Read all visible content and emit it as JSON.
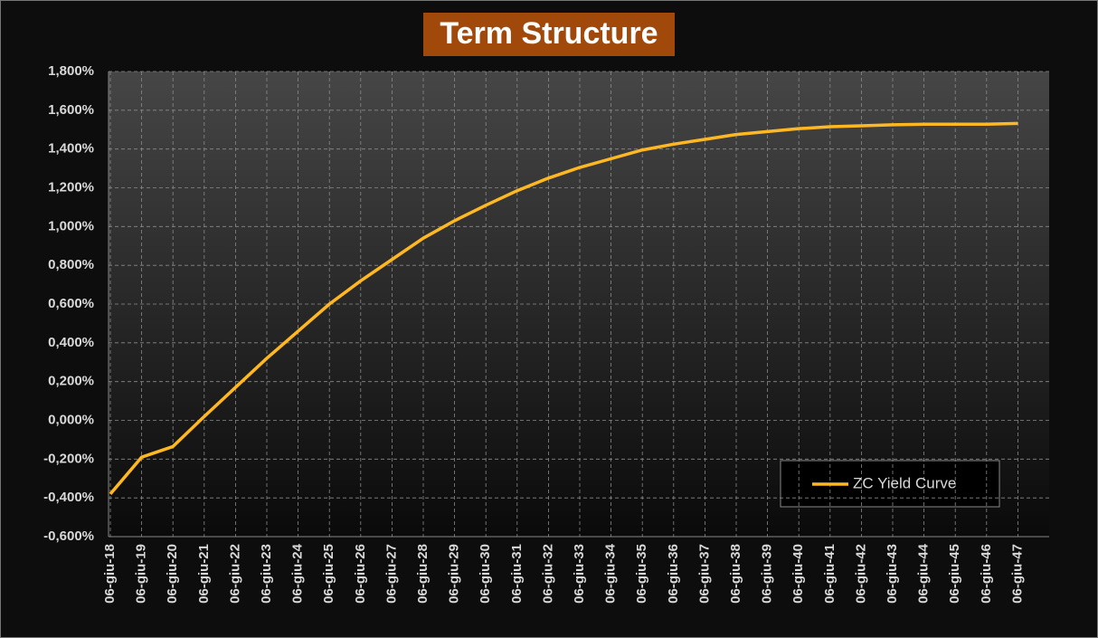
{
  "chart_data": {
    "type": "line",
    "title": "Term Structure",
    "categories": [
      "06-giu-18",
      "06-giu-19",
      "06-giu-20",
      "06-giu-21",
      "06-giu-22",
      "06-giu-23",
      "06-giu-24",
      "06-giu-25",
      "06-giu-26",
      "06-giu-27",
      "06-giu-28",
      "06-giu-29",
      "06-giu-30",
      "06-giu-31",
      "06-giu-32",
      "06-giu-33",
      "06-giu-34",
      "06-giu-35",
      "06-giu-36",
      "06-giu-37",
      "06-giu-38",
      "06-giu-39",
      "06-giu-40",
      "06-giu-41",
      "06-giu-42",
      "06-giu-43",
      "06-giu-44",
      "06-giu-45",
      "06-giu-46",
      "06-giu-47"
    ],
    "series": [
      {
        "name": "ZC Yield Curve",
        "color": "#ffb822",
        "values": [
          -0.38,
          -0.19,
          -0.135,
          0.02,
          0.17,
          0.32,
          0.46,
          0.6,
          0.72,
          0.83,
          0.94,
          1.03,
          1.11,
          1.185,
          1.25,
          1.305,
          1.35,
          1.395,
          1.425,
          1.45,
          1.475,
          1.49,
          1.505,
          1.515,
          1.52,
          1.525,
          1.528,
          1.528,
          1.528,
          1.532
        ]
      }
    ],
    "ylim": [
      -0.6,
      1.8
    ],
    "yticks": [
      {
        "value": -0.6,
        "label": "-0,600%"
      },
      {
        "value": -0.4,
        "label": "-0,400%"
      },
      {
        "value": -0.2,
        "label": "-0,200%"
      },
      {
        "value": 0,
        "label": "0,000%"
      },
      {
        "value": 0.2,
        "label": "0,200%"
      },
      {
        "value": 0.4,
        "label": "0,400%"
      },
      {
        "value": 0.6,
        "label": "0,600%"
      },
      {
        "value": 0.8,
        "label": "0,800%"
      },
      {
        "value": 1,
        "label": "1,000%"
      },
      {
        "value": 1.2,
        "label": "1,200%"
      },
      {
        "value": 1.4,
        "label": "1,400%"
      },
      {
        "value": 1.6,
        "label": "1,600%"
      },
      {
        "value": 1.8,
        "label": "1,800%"
      }
    ],
    "grid": true,
    "legend": "lower right"
  }
}
